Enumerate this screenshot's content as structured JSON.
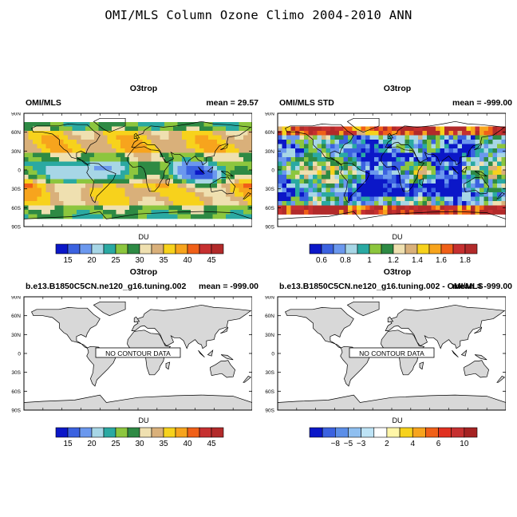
{
  "suptitle": "OMI/MLS Column Ozone Climo 2004-2010 ANN",
  "lat_ticks": [
    "90N",
    "60N",
    "30N",
    "0",
    "30S",
    "60S",
    "90S"
  ],
  "panels": [
    {
      "title": "O3trop",
      "left": "OMI/MLS",
      "right": "mean =  29.57",
      "units": "DU",
      "ticks": [
        "15",
        "20",
        "25",
        "30",
        "35",
        "40",
        "45"
      ],
      "colors": [
        "#0b17c8",
        "#3b62e0",
        "#6b98ee",
        "#a7d6e6",
        "#2aa9a2",
        "#8cc63e",
        "#2e8a44",
        "#efe0b0",
        "#d9b07a",
        "#f7d21c",
        "#f7a41d",
        "#f06018",
        "#c63030",
        "#b22a2a"
      ],
      "nodata": ""
    },
    {
      "title": "O3trop",
      "left": "OMI/MLS STD",
      "right": "mean = -999.00",
      "units": "DU",
      "ticks": [
        "0.6",
        "0.8",
        "1",
        "1.2",
        "1.4",
        "1.6",
        "1.8"
      ],
      "colors": [
        "#0b17c8",
        "#3b62e0",
        "#6b98ee",
        "#a7d6e6",
        "#2aa9a2",
        "#8cc63e",
        "#2e8a44",
        "#efe0b0",
        "#d9b07a",
        "#f7d21c",
        "#f7a41d",
        "#f06018",
        "#c63030",
        "#b22a2a"
      ],
      "nodata": ""
    },
    {
      "title": "O3trop",
      "left": "b.e13.B1850C5CN.ne120_g16.tuning.002",
      "right": "mean = -999.00",
      "units": "DU",
      "ticks": [
        "15",
        "20",
        "25",
        "30",
        "35",
        "40",
        "45"
      ],
      "colors": [
        "#0b17c8",
        "#3b62e0",
        "#6b98ee",
        "#a7d6e6",
        "#2aa9a2",
        "#8cc63e",
        "#2e8a44",
        "#efe0b0",
        "#d9b07a",
        "#f7d21c",
        "#f7a41d",
        "#f06018",
        "#c63030",
        "#b22a2a"
      ],
      "nodata": "NO CONTOUR DATA"
    },
    {
      "title": "O3trop",
      "left": "b.e13.B1850C5CN.ne120_g16.tuning.002 - OMI/MLS",
      "right": "mean = -999.00",
      "units": "DU",
      "ticks": [
        "−8",
        "−5",
        "−3",
        "2",
        "4",
        "6",
        "10"
      ],
      "colors": [
        "#0b17c8",
        "#3b62e0",
        "#5b8ee8",
        "#8fbff0",
        "#bde3f6",
        "#ffffff",
        "#fff6a8",
        "#f7d21c",
        "#f7a41d",
        "#f06018",
        "#e03020",
        "#c63030",
        "#a52222"
      ],
      "nodata": "NO CONTOUR DATA"
    }
  ],
  "chart_data": [
    {
      "type": "heatmap",
      "title": "O3trop",
      "annotation_left": "OMI/MLS",
      "annotation_right": "mean =  29.57",
      "colorbar_label": "DU",
      "colorbar_ticks": [
        15,
        20,
        25,
        30,
        35,
        40,
        45
      ],
      "ylabels": [
        "90N",
        "60N",
        "30N",
        "0",
        "30S",
        "60S",
        "90S"
      ]
    },
    {
      "type": "heatmap",
      "title": "O3trop",
      "annotation_left": "OMI/MLS STD",
      "annotation_right": "mean = -999.00",
      "colorbar_label": "DU",
      "colorbar_ticks": [
        0.6,
        0.8,
        1,
        1.2,
        1.4,
        1.6,
        1.8
      ],
      "ylabels": [
        "90N",
        "60N",
        "30N",
        "0",
        "30S",
        "60S",
        "90S"
      ]
    },
    {
      "type": "heatmap",
      "title": "O3trop",
      "annotation_left": "b.e13.B1850C5CN.ne120_g16.tuning.002",
      "annotation_right": "mean = -999.00",
      "colorbar_label": "DU",
      "colorbar_ticks": [
        15,
        20,
        25,
        30,
        35,
        40,
        45
      ],
      "ylabels": [
        "90N",
        "60N",
        "30N",
        "0",
        "30S",
        "60S",
        "90S"
      ],
      "note": "NO CONTOUR DATA"
    },
    {
      "type": "heatmap",
      "title": "O3trop",
      "annotation_left": "b.e13.B1850C5CN.ne120_g16.tuning.002 - OMI/MLS",
      "annotation_right": "mean = -999.00",
      "colorbar_label": "DU",
      "colorbar_ticks": [
        -8,
        -5,
        -3,
        2,
        4,
        6,
        10
      ],
      "ylabels": [
        "90N",
        "60N",
        "30N",
        "0",
        "30S",
        "60S",
        "90S"
      ],
      "note": "NO CONTOUR DATA"
    }
  ]
}
